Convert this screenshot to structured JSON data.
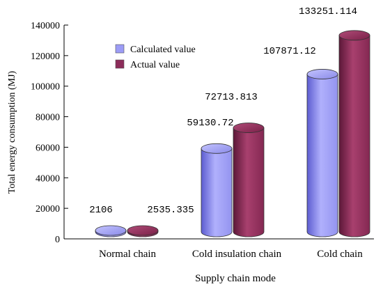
{
  "chart_data": {
    "type": "bar",
    "style": "3d-cylinder",
    "title": "",
    "xlabel": "Supply chain mode",
    "ylabel": "Total energy consumption (MJ)",
    "categories": [
      "Normal chain",
      "Cold insulation chain",
      "Cold chain"
    ],
    "ylim": [
      0,
      140000
    ],
    "yticks": [
      0,
      20000,
      40000,
      60000,
      80000,
      100000,
      120000,
      140000
    ],
    "ytick_labels": [
      "0",
      "20000",
      "40000",
      "60000",
      "80000",
      "100000",
      "120000",
      "140000"
    ],
    "grid": false,
    "legend_position": "top-left",
    "series": [
      {
        "name": "Calculated value",
        "color": "#9c9cf6",
        "values": [
          2106,
          59130.72,
          107871.12
        ],
        "labels": [
          "2106",
          "59130.72",
          "107871.12"
        ]
      },
      {
        "name": "Actual value",
        "color": "#8c2c5a",
        "values": [
          2535.335,
          72713.813,
          133251.114
        ],
        "labels": [
          "2535.335",
          "72713.813",
          "133251.114"
        ]
      }
    ]
  }
}
